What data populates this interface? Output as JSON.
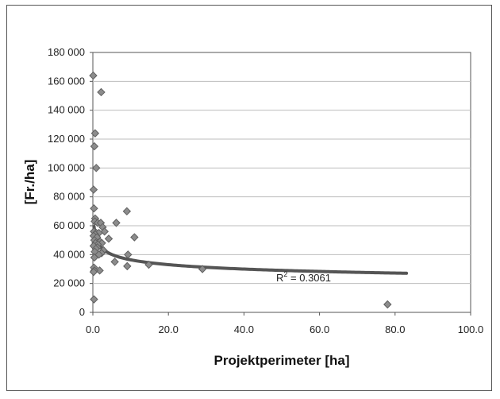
{
  "chart_data": {
    "type": "scatter",
    "xlabel": "Projektperimeter [ha]",
    "ylabel": "[Fr./ha]",
    "xlim": [
      0,
      100
    ],
    "ylim": [
      0,
      180000
    ],
    "x_ticks": [
      "0.0",
      "20.0",
      "40.0",
      "60.0",
      "80.0",
      "100.0"
    ],
    "y_ticks": [
      "0",
      "20 000",
      "40 000",
      "60 000",
      "80 000",
      "100 000",
      "120 000",
      "140 000",
      "160 000",
      "180 000"
    ],
    "grid": "horizontal",
    "annotation": {
      "base": "R",
      "sup": "2",
      "rest": " = 0.3061"
    },
    "trendline": {
      "type": "power",
      "x_range": [
        0.3,
        83
      ]
    },
    "colors": {
      "marker": "#8c8c8c",
      "marker_edge": "#5f5f5f",
      "trend": "#555555",
      "grid": "#bdbdbd"
    },
    "points": [
      {
        "x": 0.1,
        "y": 164000
      },
      {
        "x": 2.2,
        "y": 152500
      },
      {
        "x": 0.6,
        "y": 124000
      },
      {
        "x": 0.4,
        "y": 115000
      },
      {
        "x": 0.9,
        "y": 100000
      },
      {
        "x": 0.2,
        "y": 85000
      },
      {
        "x": 0.3,
        "y": 72000
      },
      {
        "x": 9.0,
        "y": 70000
      },
      {
        "x": 0.6,
        "y": 65000
      },
      {
        "x": 0.5,
        "y": 63000
      },
      {
        "x": 1.3,
        "y": 62000
      },
      {
        "x": 2.1,
        "y": 62000
      },
      {
        "x": 6.2,
        "y": 62000
      },
      {
        "x": 2.6,
        "y": 59000
      },
      {
        "x": 3.1,
        "y": 56000
      },
      {
        "x": 0.3,
        "y": 56000
      },
      {
        "x": 0.9,
        "y": 55000
      },
      {
        "x": 1.6,
        "y": 55000
      },
      {
        "x": 0.6,
        "y": 54000
      },
      {
        "x": 0.2,
        "y": 53000
      },
      {
        "x": 1.1,
        "y": 52000
      },
      {
        "x": 11.0,
        "y": 52000
      },
      {
        "x": 4.2,
        "y": 51000
      },
      {
        "x": 0.4,
        "y": 50000
      },
      {
        "x": 1.9,
        "y": 49000
      },
      {
        "x": 2.4,
        "y": 48000
      },
      {
        "x": 0.7,
        "y": 48000
      },
      {
        "x": 1.3,
        "y": 47000
      },
      {
        "x": 0.2,
        "y": 46000
      },
      {
        "x": 1.2,
        "y": 45000
      },
      {
        "x": 0.8,
        "y": 44000
      },
      {
        "x": 2.8,
        "y": 43000
      },
      {
        "x": 0.5,
        "y": 42000
      },
      {
        "x": 2.3,
        "y": 41000
      },
      {
        "x": 1.6,
        "y": 40000
      },
      {
        "x": 9.3,
        "y": 40000
      },
      {
        "x": 0.4,
        "y": 38000
      },
      {
        "x": 5.8,
        "y": 35000
      },
      {
        "x": 14.8,
        "y": 33000
      },
      {
        "x": 9.1,
        "y": 32000
      },
      {
        "x": 0.3,
        "y": 31000
      },
      {
        "x": 29.0,
        "y": 30000
      },
      {
        "x": 1.8,
        "y": 29000
      },
      {
        "x": 0.4,
        "y": 29000
      },
      {
        "x": 0.2,
        "y": 28000
      },
      {
        "x": 0.3,
        "y": 9000
      },
      {
        "x": 78.0,
        "y": 5500
      }
    ]
  }
}
